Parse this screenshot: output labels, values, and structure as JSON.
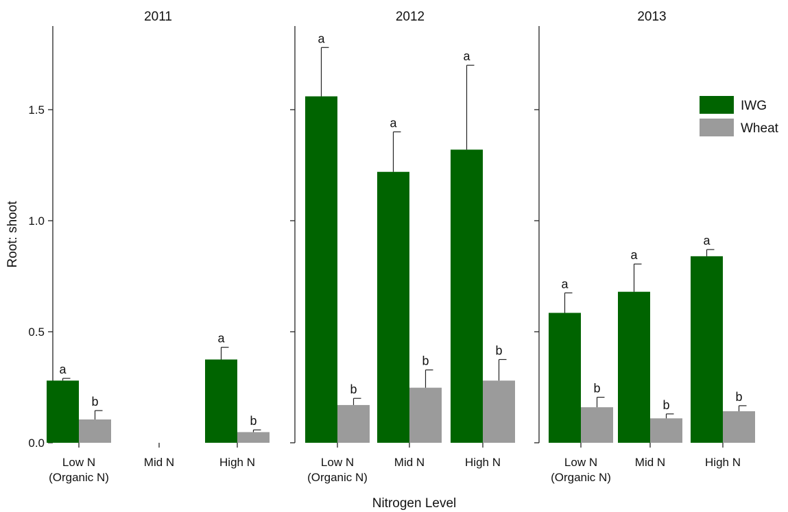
{
  "chart_data": {
    "type": "bar",
    "ylabel": "Root: shoot",
    "xlabel": "Nitrogen Level",
    "ylim": [
      0,
      1.9
    ],
    "yticks": [
      "0.0",
      "0.5",
      "1.0",
      "1.5"
    ],
    "categories": [
      "Low N\n(Organic N)",
      "Mid N",
      "High N"
    ],
    "legend": {
      "position": "top-right",
      "entries": [
        {
          "name": "IWG",
          "color": "#006400"
        },
        {
          "name": "Wheat",
          "color": "#9b9b9b"
        }
      ]
    },
    "panels": [
      {
        "title": "2011",
        "categories": [
          "Low N\n(Organic N)",
          "Mid N",
          "High N"
        ],
        "series": [
          {
            "name": "IWG",
            "color": "#006400",
            "values": [
              0.28,
              null,
              0.375
            ],
            "errors": [
              0.01,
              null,
              0.055
            ],
            "letters": [
              "a",
              null,
              "a"
            ]
          },
          {
            "name": "Wheat",
            "color": "#9b9b9b",
            "values": [
              0.105,
              null,
              0.048
            ],
            "errors": [
              0.04,
              null,
              0.01
            ],
            "letters": [
              "b",
              null,
              "b"
            ]
          }
        ]
      },
      {
        "title": "2012",
        "categories": [
          "Low N\n(Organic N)",
          "Mid N",
          "High N"
        ],
        "series": [
          {
            "name": "IWG",
            "color": "#006400",
            "values": [
              1.56,
              1.22,
              1.32
            ],
            "errors": [
              0.22,
              0.18,
              0.38
            ],
            "letters": [
              "a",
              "a",
              "a"
            ]
          },
          {
            "name": "Wheat",
            "color": "#9b9b9b",
            "values": [
              0.17,
              0.248,
              0.28
            ],
            "errors": [
              0.03,
              0.08,
              0.095
            ],
            "letters": [
              "b",
              "b",
              "b"
            ]
          }
        ]
      },
      {
        "title": "2013",
        "categories": [
          "Low N\n(Organic N)",
          "Mid N",
          "High N"
        ],
        "series": [
          {
            "name": "IWG",
            "color": "#006400",
            "values": [
              0.585,
              0.68,
              0.84
            ],
            "errors": [
              0.09,
              0.125,
              0.03
            ],
            "letters": [
              "a",
              "a",
              "a"
            ]
          },
          {
            "name": "Wheat",
            "color": "#9b9b9b",
            "values": [
              0.16,
              0.11,
              0.142
            ],
            "errors": [
              0.045,
              0.02,
              0.025
            ],
            "letters": [
              "b",
              "b",
              "b"
            ]
          }
        ]
      }
    ]
  }
}
